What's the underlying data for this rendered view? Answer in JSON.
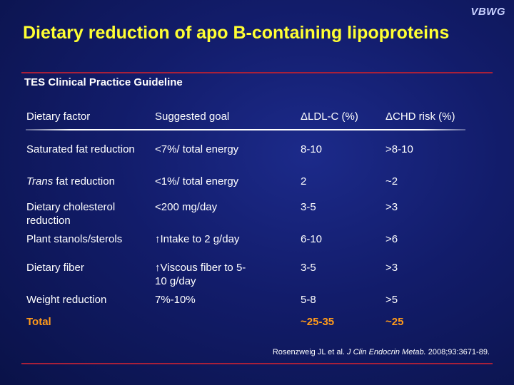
{
  "watermark": "VBWG",
  "title": "Dietary reduction of apo B-containing lipoproteins",
  "subtitle": "TES Clinical Practice Guideline",
  "table": {
    "headers": [
      "Dietary factor",
      "Suggested goal",
      "ΔLDL-C (%)",
      "ΔCHD risk (%)"
    ],
    "rows": [
      {
        "factor_prefix": "",
        "factor": "Saturated fat reduction",
        "goal": "<7%/ total energy",
        "ldl": "8-10",
        "chd": ">8-10"
      },
      {
        "factor_prefix": "Trans",
        "factor": " fat reduction",
        "goal": "<1%/ total energy",
        "ldl": "2",
        "chd": "~2"
      },
      {
        "factor_prefix": "",
        "factor": "Dietary cholesterol reduction",
        "goal": "<200 mg/day",
        "ldl": "3-5",
        "chd": ">3"
      },
      {
        "factor_prefix": "",
        "factor": "Plant stanols/sterols",
        "goal": "↑Intake to 2 g/day",
        "ldl": "6-10",
        "chd": ">6"
      },
      {
        "factor_prefix": "",
        "factor": "Dietary fiber",
        "goal": "↑Viscous fiber to 5-10 g/day",
        "ldl": "3-5",
        "chd": ">3"
      },
      {
        "factor_prefix": "",
        "factor": "Weight reduction",
        "goal": "7%-10%",
        "ldl": "5-8",
        "chd": ">5"
      }
    ],
    "total": {
      "label": "Total",
      "ldl": "~25-35",
      "chd": "~25"
    }
  },
  "citation": {
    "authors": "Rosenzweig JL et al. ",
    "journal": "J Clin Endocrin Metab.",
    "details": " 2008;93:3671-89."
  }
}
